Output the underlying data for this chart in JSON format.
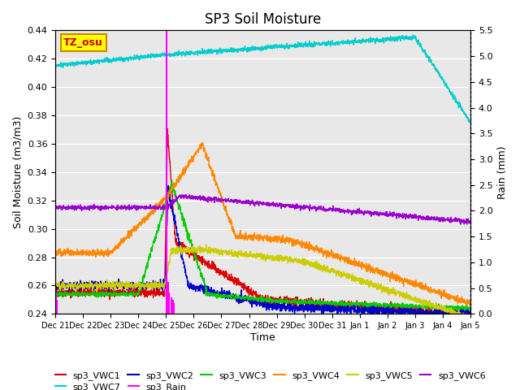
{
  "title": "SP3 Soil Moisture",
  "ylabel_left": "Soil Moisture (m3/m3)",
  "ylabel_right": "Rain (mm)",
  "xlabel": "Time",
  "ylim_left": [
    0.24,
    0.44
  ],
  "ylim_right": [
    0.0,
    5.5
  ],
  "plot_bg_color": "#e8e8e8",
  "fig_bg_color": "#ffffff",
  "tz_label": "TZ_osu",
  "tz_bg": "#ffff00",
  "tz_border": "#cc8800",
  "colors": {
    "vwc1": "#dd0000",
    "vwc2": "#0000cc",
    "vwc3": "#00cc00",
    "vwc4": "#ff8800",
    "vwc5": "#cccc00",
    "vwc6": "#9900cc",
    "vwc7": "#00cccc",
    "rain": "#ff00ff"
  },
  "yticks_left": [
    0.24,
    0.26,
    0.28,
    0.3,
    0.32,
    0.34,
    0.36,
    0.38,
    0.4,
    0.42,
    0.44
  ],
  "yticks_right": [
    0.0,
    0.5,
    1.0,
    1.5,
    2.0,
    2.5,
    3.0,
    3.5,
    4.0,
    4.5,
    5.0,
    5.5
  ],
  "xtick_labels": [
    "Dec 21",
    "Dec 22",
    "Dec 23",
    "Dec 24",
    "Dec 25",
    "Dec 26",
    "Dec 27",
    "Dec 28",
    "Dec 29",
    "Dec 30",
    "Dec 31",
    "Jan 1",
    "Jan 2",
    "Jan 3",
    "Jan 4",
    "Jan 5"
  ]
}
